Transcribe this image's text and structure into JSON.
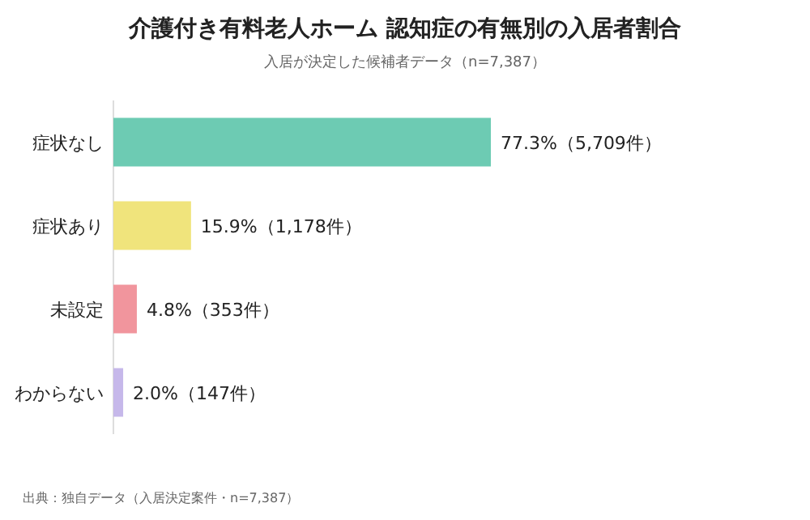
{
  "chart_data": {
    "type": "bar",
    "orientation": "horizontal",
    "title": "介護付き有料老人ホーム 認知症の有無別の入居者割合",
    "subtitle": "入居が決定した候補者データ（n=7,387）",
    "categories": [
      "症状なし",
      "症状あり",
      "未設定",
      "わからない"
    ],
    "values": [
      77.3,
      15.9,
      4.8,
      2.0
    ],
    "colors": [
      "#6dcbb3",
      "#f0e47c",
      "#f1959d",
      "#c6b8ea"
    ],
    "value_labels": [
      "77.3%（5,709件）",
      "15.9%（1,178件）",
      "4.8%（353件）",
      "2.0%（147件）"
    ],
    "annotations": [
      "出典：独自データ（入居決定案件・n=7,387）"
    ]
  }
}
